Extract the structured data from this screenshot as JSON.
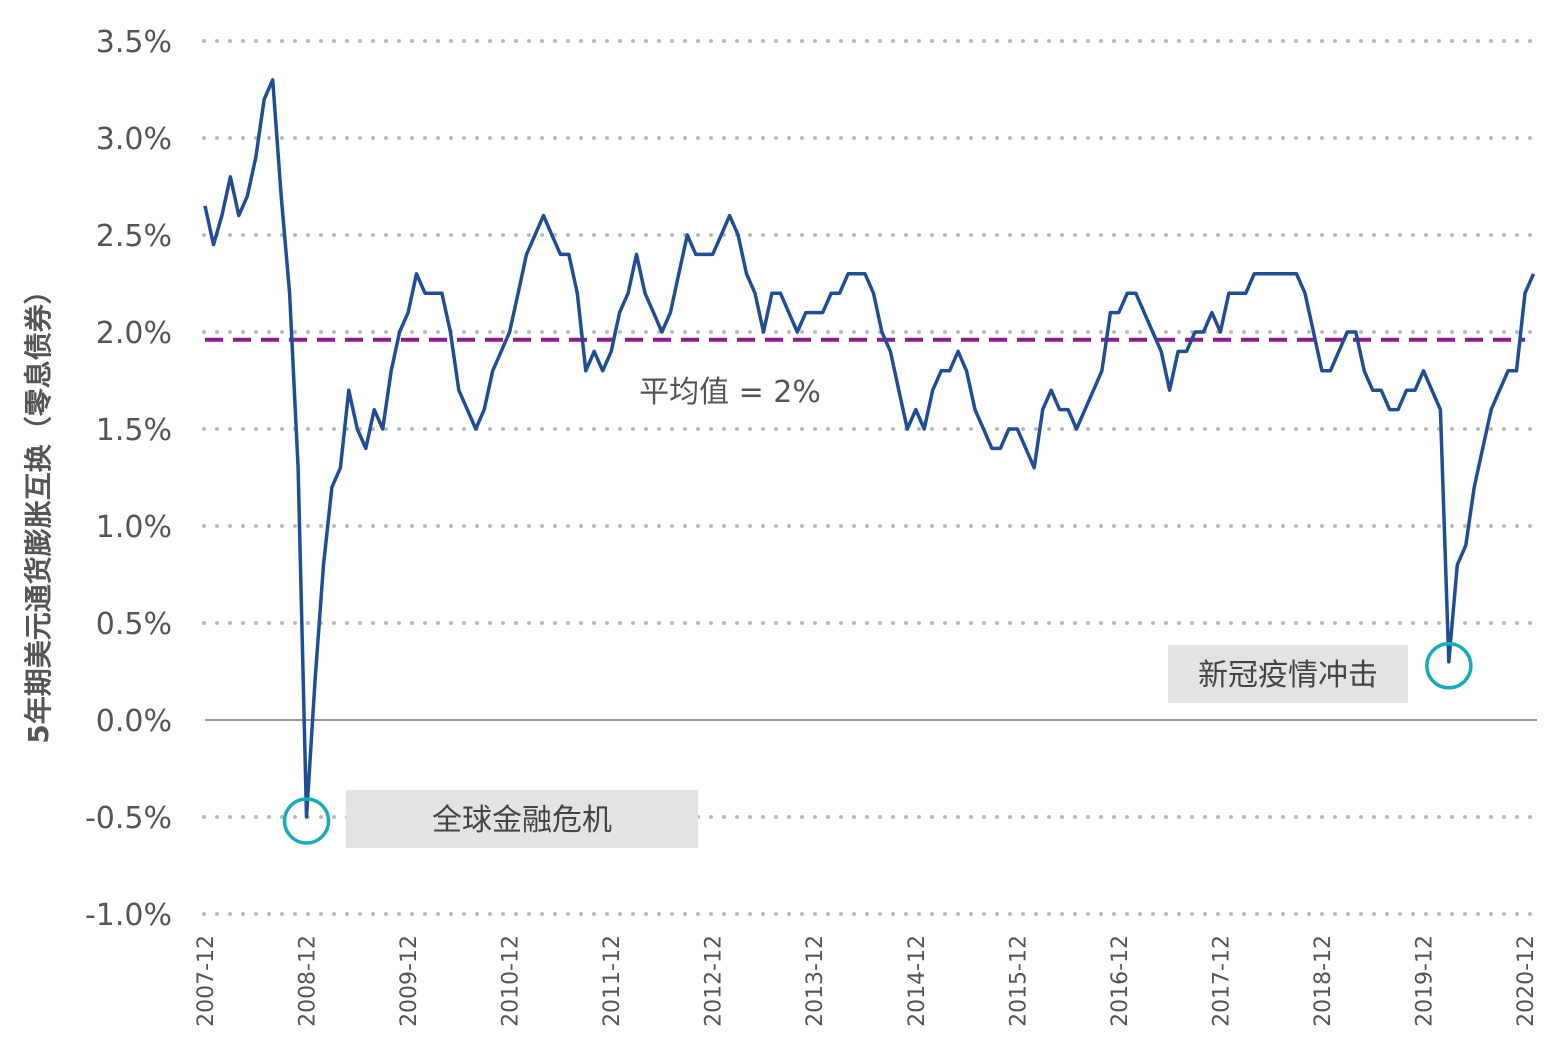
{
  "chart_data": {
    "type": "line",
    "y_label": "5年期美元通货膨胀互换（零息债券）",
    "x": [
      "2007-12",
      "2008-01",
      "2008-02",
      "2008-03",
      "2008-04",
      "2008-05",
      "2008-06",
      "2008-07",
      "2008-08",
      "2008-09",
      "2008-10",
      "2008-11",
      "2008-12",
      "2009-01",
      "2009-02",
      "2009-03",
      "2009-04",
      "2009-05",
      "2009-06",
      "2009-07",
      "2009-08",
      "2009-09",
      "2009-10",
      "2009-11",
      "2009-12",
      "2010-01",
      "2010-02",
      "2010-03",
      "2010-04",
      "2010-05",
      "2010-06",
      "2010-07",
      "2010-08",
      "2010-09",
      "2010-10",
      "2010-11",
      "2010-12",
      "2011-01",
      "2011-02",
      "2011-03",
      "2011-04",
      "2011-05",
      "2011-06",
      "2011-07",
      "2011-08",
      "2011-09",
      "2011-10",
      "2011-11",
      "2011-12",
      "2012-01",
      "2012-02",
      "2012-03",
      "2012-04",
      "2012-05",
      "2012-06",
      "2012-07",
      "2012-08",
      "2012-09",
      "2012-10",
      "2012-11",
      "2012-12",
      "2013-01",
      "2013-02",
      "2013-03",
      "2013-04",
      "2013-05",
      "2013-06",
      "2013-07",
      "2013-08",
      "2013-09",
      "2013-10",
      "2013-11",
      "2013-12",
      "2014-01",
      "2014-02",
      "2014-03",
      "2014-04",
      "2014-05",
      "2014-06",
      "2014-07",
      "2014-08",
      "2014-09",
      "2014-10",
      "2014-11",
      "2014-12",
      "2015-01",
      "2015-02",
      "2015-03",
      "2015-04",
      "2015-05",
      "2015-06",
      "2015-07",
      "2015-08",
      "2015-09",
      "2015-10",
      "2015-11",
      "2015-12",
      "2016-01",
      "2016-02",
      "2016-03",
      "2016-04",
      "2016-05",
      "2016-06",
      "2016-07",
      "2016-08",
      "2016-09",
      "2016-10",
      "2016-11",
      "2016-12",
      "2017-01",
      "2017-02",
      "2017-03",
      "2017-04",
      "2017-05",
      "2017-06",
      "2017-07",
      "2017-08",
      "2017-09",
      "2017-10",
      "2017-11",
      "2017-12",
      "2018-01",
      "2018-02",
      "2018-03",
      "2018-04",
      "2018-05",
      "2018-06",
      "2018-07",
      "2018-08",
      "2018-09",
      "2018-10",
      "2018-11",
      "2018-12",
      "2019-01",
      "2019-02",
      "2019-03",
      "2019-04",
      "2019-05",
      "2019-06",
      "2019-07",
      "2019-08",
      "2019-09",
      "2019-10",
      "2019-11",
      "2019-12",
      "2020-01",
      "2020-02",
      "2020-03",
      "2020-04",
      "2020-05",
      "2020-06",
      "2020-07",
      "2020-08",
      "2020-09",
      "2020-10",
      "2020-11",
      "2020-12",
      "2021-01"
    ],
    "series": [
      {
        "name": "5年期美元通货膨胀互换",
        "color": "#1f4e96",
        "values": [
          2.65,
          2.45,
          2.6,
          2.8,
          2.6,
          2.7,
          2.9,
          3.2,
          3.3,
          2.7,
          2.2,
          1.3,
          -0.5,
          0.2,
          0.8,
          1.2,
          1.3,
          1.7,
          1.5,
          1.4,
          1.6,
          1.5,
          1.8,
          2.0,
          2.1,
          2.3,
          2.2,
          2.2,
          2.2,
          2.0,
          1.7,
          1.6,
          1.5,
          1.6,
          1.8,
          1.9,
          2.0,
          2.2,
          2.4,
          2.5,
          2.6,
          2.5,
          2.4,
          2.4,
          2.2,
          1.8,
          1.9,
          1.8,
          1.9,
          2.1,
          2.2,
          2.4,
          2.2,
          2.1,
          2.0,
          2.1,
          2.3,
          2.5,
          2.4,
          2.4,
          2.4,
          2.5,
          2.6,
          2.5,
          2.3,
          2.2,
          2.0,
          2.2,
          2.2,
          2.1,
          2.0,
          2.1,
          2.1,
          2.1,
          2.2,
          2.2,
          2.3,
          2.3,
          2.3,
          2.2,
          2.0,
          1.9,
          1.7,
          1.5,
          1.6,
          1.5,
          1.7,
          1.8,
          1.8,
          1.9,
          1.8,
          1.6,
          1.5,
          1.4,
          1.4,
          1.5,
          1.5,
          1.4,
          1.3,
          1.6,
          1.7,
          1.6,
          1.6,
          1.5,
          1.6,
          1.7,
          1.8,
          2.1,
          2.1,
          2.2,
          2.2,
          2.1,
          2.0,
          1.9,
          1.7,
          1.9,
          1.9,
          2.0,
          2.0,
          2.1,
          2.0,
          2.2,
          2.2,
          2.2,
          2.3,
          2.3,
          2.3,
          2.3,
          2.3,
          2.3,
          2.2,
          2.0,
          1.8,
          1.8,
          1.9,
          2.0,
          2.0,
          1.8,
          1.7,
          1.7,
          1.6,
          1.6,
          1.7,
          1.7,
          1.8,
          1.7,
          1.6,
          0.3,
          0.8,
          0.9,
          1.2,
          1.4,
          1.6,
          1.7,
          1.8,
          1.8,
          2.2,
          2.3
        ]
      }
    ],
    "ylim": [
      -1.0,
      3.5
    ],
    "yticks": [
      {
        "value": -1.0,
        "label": "-1.0%"
      },
      {
        "value": -0.5,
        "label": "-0.5%"
      },
      {
        "value": 0.0,
        "label": "0.0%"
      },
      {
        "value": 0.5,
        "label": "0.5%"
      },
      {
        "value": 1.0,
        "label": "1.0%"
      },
      {
        "value": 1.5,
        "label": "1.5%"
      },
      {
        "value": 2.0,
        "label": "2.0%"
      },
      {
        "value": 2.5,
        "label": "2.5%"
      },
      {
        "value": 3.0,
        "label": "3.0%"
      },
      {
        "value": 3.5,
        "label": "3.5%"
      }
    ],
    "xticks": [
      "2007-12",
      "2008-12",
      "2009-12",
      "2010-12",
      "2011-12",
      "2012-12",
      "2013-12",
      "2014-12",
      "2015-12",
      "2016-12",
      "2017-12",
      "2018-12",
      "2019-12",
      "2020-12"
    ],
    "grid": true,
    "mean_line": {
      "value": 1.96,
      "label": "平均值 = 2%",
      "color": "#8e1a8e"
    },
    "annotations": [
      {
        "text": "全球金融危机",
        "point": "2008-12"
      },
      {
        "text": "新冠疫情冲击",
        "point": "2020-03"
      }
    ]
  }
}
